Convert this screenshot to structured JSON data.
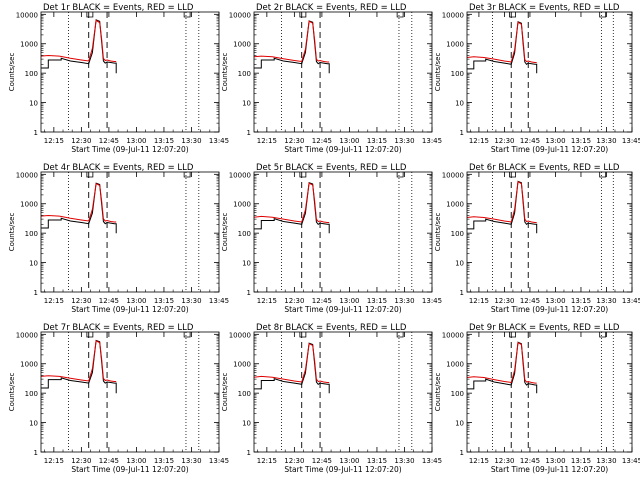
{
  "page": {
    "background": "#ffffff"
  },
  "colors": {
    "events": "#000000",
    "lld": "#e00000",
    "axis": "#000000"
  },
  "chart_data": [
    {
      "type": "line",
      "title": "Det 1r BLACK = Events, RED = LLD",
      "xlabel": "Start Time (09-Jul-11 12:07:20)",
      "ylabel": "Counts/sec",
      "x_ticks": [
        "12:15",
        "12:30",
        "12:45",
        "13:00",
        "13:15",
        "13:30",
        "13:45"
      ],
      "y_ticks": [
        "1",
        "10",
        "100",
        "1000",
        "10000"
      ],
      "y_scale": "log",
      "ylim": [
        1,
        12000
      ],
      "xlim_minutes": [
        8,
        105
      ],
      "dotted_lines_minutes": [
        23,
        87,
        94
      ],
      "dashed_lines_minutes": [
        34,
        44
      ],
      "flag_minutes": [
        33,
        86
      ],
      "series": [
        {
          "name": "BLACK = Events",
          "x": [
            8,
            12,
            12,
            19,
            19,
            24,
            30,
            34,
            36,
            38,
            40,
            41,
            42,
            43,
            44,
            46,
            48,
            49,
            49
          ],
          "y": [
            150,
            150,
            280,
            280,
            320,
            260,
            230,
            210,
            500,
            6500,
            5800,
            1200,
            260,
            220,
            240,
            230,
            220,
            220,
            100
          ]
        },
        {
          "name": "RED = LLD",
          "x": [
            8,
            12,
            18,
            24,
            30,
            34,
            36,
            38,
            40,
            41,
            42,
            43,
            44,
            46,
            48,
            49
          ],
          "y": [
            380,
            400,
            380,
            320,
            280,
            260,
            700,
            6200,
            5200,
            1500,
            320,
            270,
            280,
            260,
            250,
            250
          ]
        }
      ]
    },
    {
      "type": "line",
      "title": "Det 2r BLACK = Events, RED = LLD",
      "xlabel": "Start Time (09-Jul-11 12:07:20)",
      "ylabel": "Counts/sec",
      "x_ticks": [
        "12:15",
        "12:30",
        "12:45",
        "13:00",
        "13:15",
        "13:30",
        "13:45"
      ],
      "y_ticks": [
        "1",
        "10",
        "100",
        "1000",
        "10000"
      ],
      "y_scale": "log",
      "ylim": [
        1,
        12000
      ],
      "xlim_minutes": [
        8,
        105
      ],
      "dotted_lines_minutes": [
        23,
        87,
        94
      ],
      "dashed_lines_minutes": [
        34,
        44
      ],
      "flag_minutes": [
        33,
        86
      ],
      "series": [
        {
          "name": "BLACK = Events",
          "x": [
            8,
            12,
            12,
            19,
            19,
            24,
            30,
            34,
            36,
            38,
            40,
            41,
            42,
            43,
            44,
            46,
            48,
            49,
            49
          ],
          "y": [
            150,
            150,
            280,
            280,
            320,
            260,
            230,
            210,
            500,
            6000,
            5400,
            1100,
            250,
            210,
            230,
            220,
            210,
            210,
            100
          ]
        },
        {
          "name": "RED = LLD",
          "x": [
            8,
            12,
            18,
            24,
            30,
            34,
            36,
            38,
            40,
            41,
            42,
            43,
            44,
            46,
            48,
            49
          ],
          "y": [
            360,
            380,
            360,
            310,
            270,
            250,
            650,
            5800,
            5000,
            1400,
            300,
            260,
            270,
            250,
            240,
            240
          ]
        }
      ]
    },
    {
      "type": "line",
      "title": "Det 3r BLACK = Events, RED = LLD",
      "xlabel": "Start Time (09-Jul-11 12:07:20)",
      "ylabel": "Counts/sec",
      "x_ticks": [
        "12:15",
        "12:30",
        "12:45",
        "13:00",
        "13:15",
        "13:30",
        "13:45"
      ],
      "y_ticks": [
        "1",
        "10",
        "100",
        "1000",
        "10000"
      ],
      "y_scale": "log",
      "ylim": [
        1,
        12000
      ],
      "xlim_minutes": [
        8,
        105
      ],
      "dotted_lines_minutes": [
        23,
        87,
        94
      ],
      "dashed_lines_minutes": [
        34,
        44
      ],
      "flag_minutes": [
        33,
        86
      ],
      "series": [
        {
          "name": "BLACK = Events",
          "x": [
            8,
            12,
            12,
            19,
            19,
            24,
            30,
            34,
            36,
            38,
            40,
            41,
            42,
            43,
            44,
            46,
            48,
            49,
            49
          ],
          "y": [
            140,
            140,
            260,
            260,
            300,
            250,
            220,
            200,
            480,
            5600,
            5000,
            1000,
            240,
            200,
            220,
            210,
            200,
            200,
            100
          ]
        },
        {
          "name": "RED = LLD",
          "x": [
            8,
            12,
            18,
            24,
            30,
            34,
            36,
            38,
            40,
            41,
            42,
            43,
            44,
            46,
            48,
            49
          ],
          "y": [
            340,
            360,
            340,
            300,
            260,
            240,
            620,
            5400,
            4600,
            1300,
            290,
            250,
            260,
            240,
            230,
            230
          ]
        }
      ]
    },
    {
      "type": "line",
      "title": "Det 4r BLACK = Events, RED = LLD",
      "xlabel": "Start Time (09-Jul-11 12:07:20)",
      "ylabel": "Counts/sec",
      "x_ticks": [
        "12:15",
        "12:30",
        "12:45",
        "13:00",
        "13:15",
        "13:30",
        "13:45"
      ],
      "y_ticks": [
        "1",
        "10",
        "100",
        "1000",
        "10000"
      ],
      "y_scale": "log",
      "ylim": [
        1,
        12000
      ],
      "xlim_minutes": [
        8,
        105
      ],
      "dotted_lines_minutes": [
        23,
        87,
        94
      ],
      "dashed_lines_minutes": [
        34,
        44
      ],
      "flag_minutes": [
        33,
        86
      ],
      "series": [
        {
          "name": "BLACK = Events",
          "x": [
            8,
            12,
            12,
            19,
            19,
            24,
            30,
            34,
            36,
            38,
            40,
            41,
            42,
            43,
            44,
            46,
            48,
            49,
            49
          ],
          "y": [
            150,
            150,
            280,
            280,
            320,
            260,
            230,
            210,
            480,
            5000,
            4500,
            1000,
            250,
            210,
            230,
            220,
            210,
            210,
            100
          ]
        },
        {
          "name": "RED = LLD",
          "x": [
            8,
            12,
            18,
            24,
            30,
            34,
            36,
            38,
            40,
            41,
            42,
            43,
            44,
            46,
            48,
            49
          ],
          "y": [
            380,
            400,
            380,
            320,
            280,
            260,
            650,
            4800,
            4200,
            1300,
            310,
            260,
            270,
            250,
            240,
            240
          ]
        }
      ]
    },
    {
      "type": "line",
      "title": "Det 5r BLACK = Events, RED = LLD",
      "xlabel": "Start Time (09-Jul-11 12:07:20)",
      "ylabel": "Counts/sec",
      "x_ticks": [
        "12:15",
        "12:30",
        "12:45",
        "13:00",
        "13:15",
        "13:30",
        "13:45"
      ],
      "y_ticks": [
        "1",
        "10",
        "100",
        "1000",
        "10000"
      ],
      "y_scale": "log",
      "ylim": [
        1,
        12000
      ],
      "xlim_minutes": [
        8,
        105
      ],
      "dotted_lines_minutes": [
        23,
        87,
        94
      ],
      "dashed_lines_minutes": [
        34,
        44
      ],
      "flag_minutes": [
        33,
        86
      ],
      "series": [
        {
          "name": "BLACK = Events",
          "x": [
            8,
            12,
            12,
            19,
            19,
            24,
            30,
            34,
            36,
            38,
            40,
            41,
            42,
            43,
            44,
            46,
            48,
            49,
            49
          ],
          "y": [
            140,
            140,
            270,
            270,
            310,
            250,
            220,
            200,
            470,
            5200,
            4700,
            1000,
            240,
            200,
            220,
            210,
            200,
            200,
            100
          ]
        },
        {
          "name": "RED = LLD",
          "x": [
            8,
            12,
            18,
            24,
            30,
            34,
            36,
            38,
            40,
            41,
            42,
            43,
            44,
            46,
            48,
            49
          ],
          "y": [
            350,
            370,
            350,
            300,
            260,
            240,
            620,
            5000,
            4300,
            1300,
            300,
            250,
            260,
            240,
            230,
            230
          ]
        }
      ]
    },
    {
      "type": "line",
      "title": "Det 6r BLACK = Events, RED = LLD",
      "xlabel": "Start Time (09-Jul-11 12:07:20)",
      "ylabel": "Counts/sec",
      "x_ticks": [
        "12:15",
        "12:30",
        "12:45",
        "13:00",
        "13:15",
        "13:30",
        "13:45"
      ],
      "y_ticks": [
        "1",
        "10",
        "100",
        "1000",
        "10000"
      ],
      "y_scale": "log",
      "ylim": [
        1,
        12000
      ],
      "xlim_minutes": [
        8,
        105
      ],
      "dotted_lines_minutes": [
        23,
        87,
        94
      ],
      "dashed_lines_minutes": [
        34,
        44
      ],
      "flag_minutes": [
        33,
        86
      ],
      "series": [
        {
          "name": "BLACK = Events",
          "x": [
            8,
            12,
            12,
            19,
            19,
            24,
            30,
            34,
            36,
            38,
            40,
            41,
            42,
            43,
            44,
            46,
            48,
            49,
            49
          ],
          "y": [
            140,
            140,
            260,
            260,
            300,
            250,
            220,
            200,
            480,
            5800,
            5200,
            1100,
            240,
            200,
            220,
            210,
            200,
            200,
            100
          ]
        },
        {
          "name": "RED = LLD",
          "x": [
            8,
            12,
            18,
            24,
            30,
            34,
            36,
            38,
            40,
            41,
            42,
            43,
            44,
            46,
            48,
            49
          ],
          "y": [
            340,
            360,
            340,
            300,
            260,
            240,
            640,
            5600,
            4800,
            1400,
            300,
            250,
            260,
            240,
            230,
            230
          ]
        }
      ]
    },
    {
      "type": "line",
      "title": "Det 7r BLACK = Events, RED = LLD",
      "xlabel": "Start Time (09-Jul-11 12:07:20)",
      "ylabel": "Counts/sec",
      "x_ticks": [
        "12:15",
        "12:30",
        "12:45",
        "13:00",
        "13:15",
        "13:30",
        "13:45"
      ],
      "y_ticks": [
        "1",
        "10",
        "100",
        "1000",
        "10000"
      ],
      "y_scale": "log",
      "ylim": [
        1,
        12000
      ],
      "xlim_minutes": [
        8,
        105
      ],
      "dotted_lines_minutes": [
        23,
        87,
        94
      ],
      "dashed_lines_minutes": [
        34,
        44
      ],
      "flag_minutes": [
        33,
        86
      ],
      "series": [
        {
          "name": "BLACK = Events",
          "x": [
            8,
            12,
            12,
            19,
            19,
            24,
            30,
            34,
            36,
            38,
            40,
            41,
            42,
            43,
            44,
            46,
            48,
            49,
            49
          ],
          "y": [
            150,
            150,
            290,
            290,
            330,
            270,
            240,
            220,
            500,
            6200,
            5600,
            1200,
            260,
            220,
            240,
            230,
            220,
            220,
            100
          ]
        },
        {
          "name": "RED = LLD",
          "x": [
            8,
            12,
            18,
            24,
            30,
            34,
            36,
            38,
            40,
            41,
            42,
            43,
            44,
            46,
            48,
            49
          ],
          "y": [
            370,
            390,
            370,
            320,
            280,
            260,
            680,
            6000,
            5200,
            1500,
            320,
            270,
            280,
            260,
            250,
            250
          ]
        }
      ]
    },
    {
      "type": "line",
      "title": "Det 8r BLACK = Events, RED = LLD",
      "xlabel": "Start Time (09-Jul-11 12:07:20)",
      "ylabel": "Counts/sec",
      "x_ticks": [
        "12:15",
        "12:30",
        "12:45",
        "13:00",
        "13:15",
        "13:30",
        "13:45"
      ],
      "y_ticks": [
        "1",
        "10",
        "100",
        "1000",
        "10000"
      ],
      "y_scale": "log",
      "ylim": [
        1,
        12000
      ],
      "xlim_minutes": [
        8,
        105
      ],
      "dotted_lines_minutes": [
        23,
        87,
        94
      ],
      "dashed_lines_minutes": [
        34,
        44
      ],
      "flag_minutes": [
        33,
        86
      ],
      "series": [
        {
          "name": "BLACK = Events",
          "x": [
            8,
            12,
            12,
            19,
            19,
            24,
            30,
            34,
            36,
            38,
            40,
            41,
            42,
            43,
            44,
            46,
            48,
            49,
            49
          ],
          "y": [
            140,
            140,
            270,
            270,
            310,
            250,
            220,
            200,
            480,
            5000,
            4500,
            1000,
            240,
            200,
            220,
            210,
            200,
            200,
            100
          ]
        },
        {
          "name": "RED = LLD",
          "x": [
            8,
            12,
            18,
            24,
            30,
            34,
            36,
            38,
            40,
            41,
            42,
            43,
            44,
            46,
            48,
            49
          ],
          "y": [
            350,
            370,
            350,
            300,
            260,
            240,
            620,
            4800,
            4200,
            1300,
            300,
            250,
            260,
            240,
            230,
            230
          ]
        }
      ]
    },
    {
      "type": "line",
      "title": "Det 9r BLACK = Events, RED = LLD",
      "xlabel": "Start Time (09-Jul-11 12:07:20)",
      "ylabel": "Counts/sec",
      "x_ticks": [
        "12:15",
        "12:30",
        "12:45",
        "13:00",
        "13:15",
        "13:30",
        "13:45"
      ],
      "y_ticks": [
        "1",
        "10",
        "100",
        "1000",
        "10000"
      ],
      "y_scale": "log",
      "ylim": [
        1,
        12000
      ],
      "xlim_minutes": [
        8,
        105
      ],
      "dotted_lines_minutes": [
        23,
        87,
        94
      ],
      "dashed_lines_minutes": [
        34,
        44
      ],
      "flag_minutes": [
        33,
        86
      ],
      "series": [
        {
          "name": "BLACK = Events",
          "x": [
            8,
            12,
            12,
            19,
            19,
            24,
            30,
            34,
            36,
            38,
            40,
            41,
            42,
            43,
            44,
            46,
            48,
            49,
            49
          ],
          "y": [
            140,
            140,
            260,
            260,
            300,
            240,
            210,
            190,
            460,
            5400,
            4800,
            1000,
            230,
            190,
            210,
            200,
            190,
            190,
            100
          ]
        },
        {
          "name": "RED = LLD",
          "x": [
            8,
            12,
            18,
            24,
            30,
            34,
            36,
            38,
            40,
            41,
            42,
            43,
            44,
            46,
            48,
            49
          ],
          "y": [
            340,
            360,
            340,
            290,
            250,
            230,
            600,
            5200,
            4500,
            1300,
            290,
            240,
            250,
            230,
            220,
            220
          ]
        }
      ]
    }
  ]
}
